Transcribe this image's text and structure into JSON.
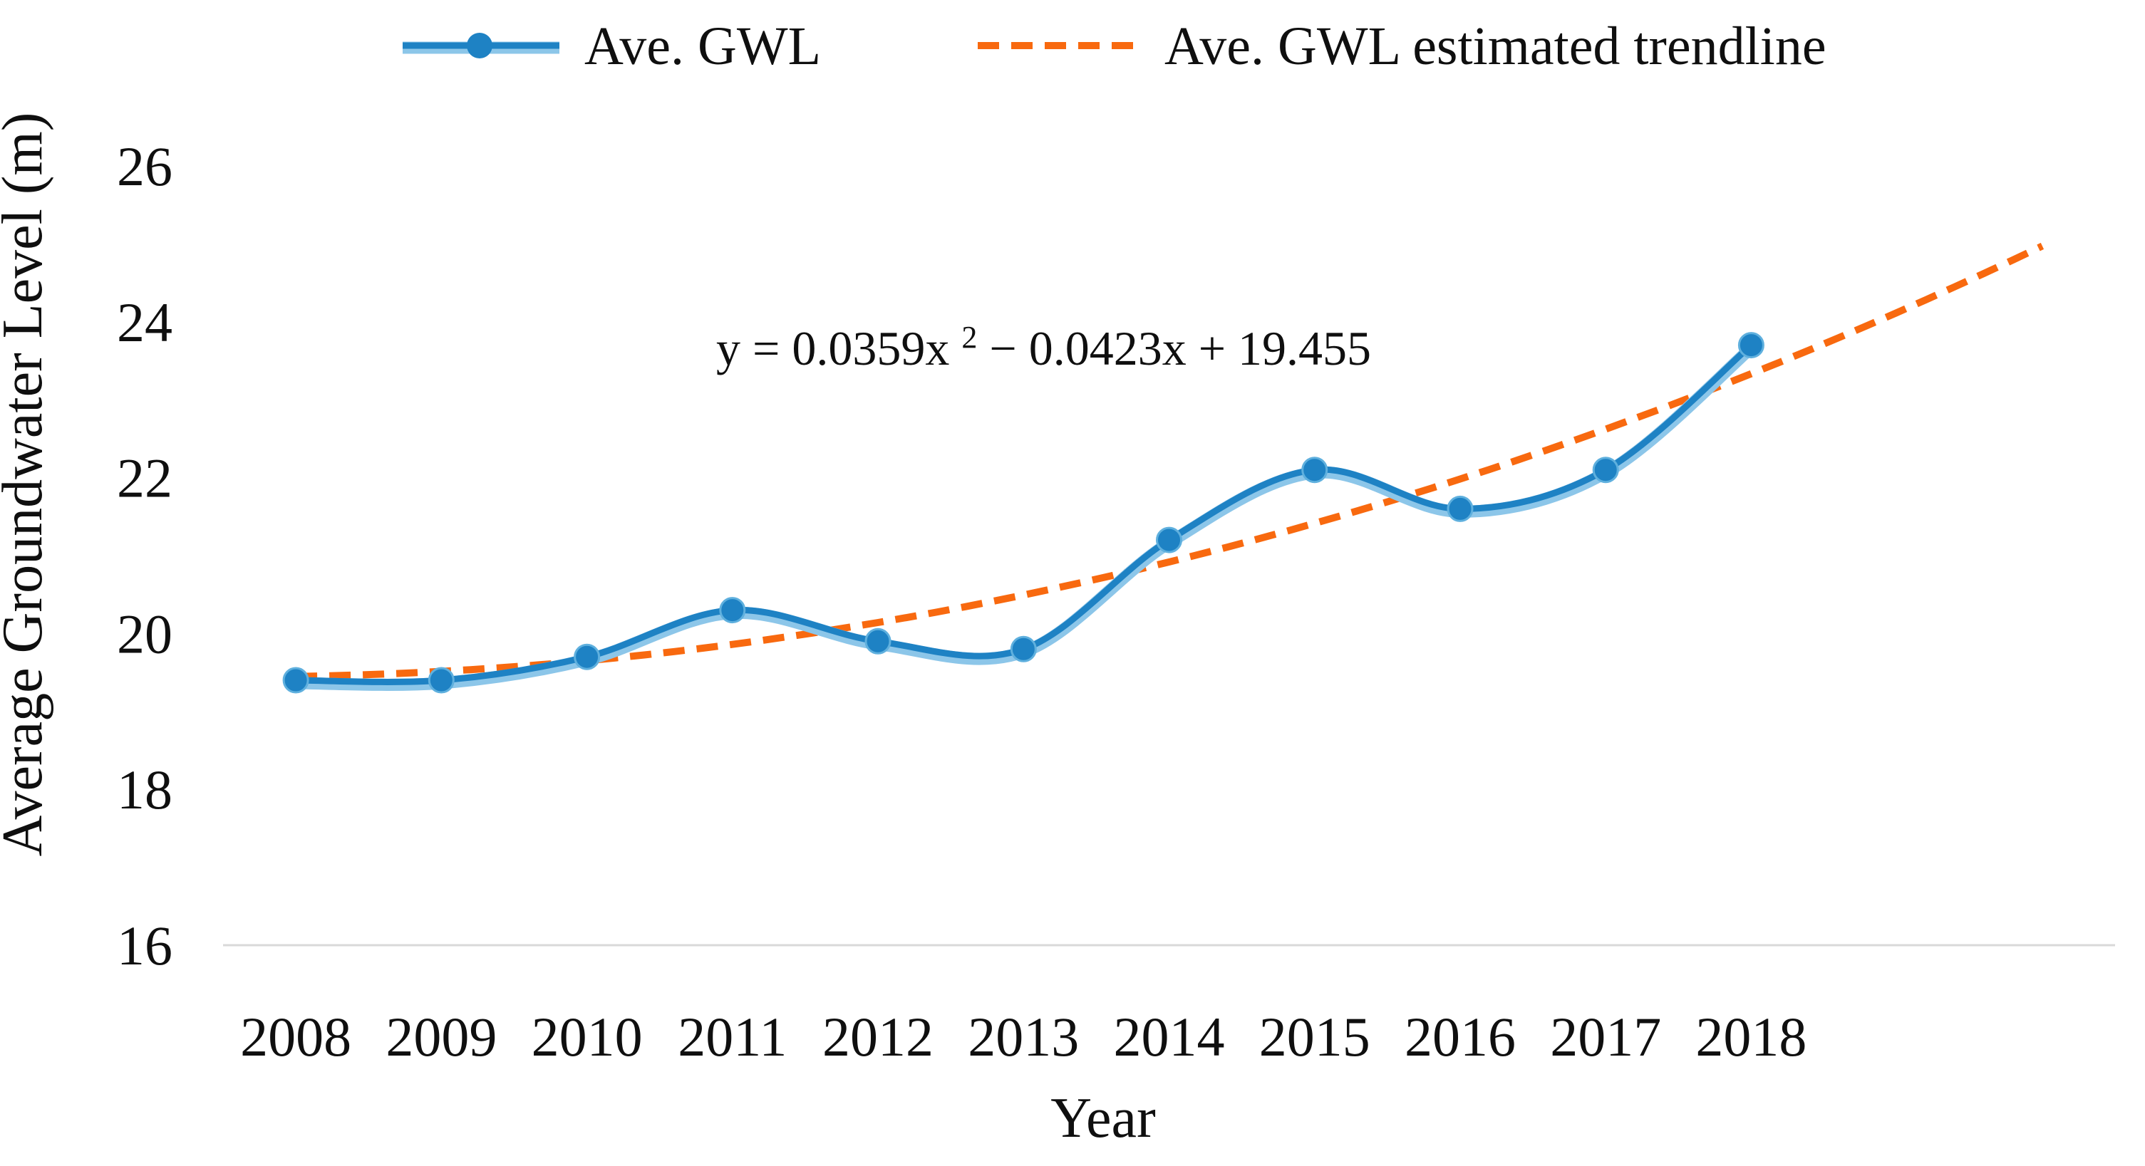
{
  "page": {
    "background": "#ffffff"
  },
  "legend": {
    "position": "top",
    "items": [
      {
        "label": "Ave. GWL",
        "swatch": "line-with-marker",
        "color": "#1e82c4"
      },
      {
        "label": "Ave. GWL estimated trendline",
        "swatch": "dashed-line",
        "color": "#f8690f"
      }
    ]
  },
  "chart_data": {
    "type": "line",
    "title": "",
    "xlabel": "Year",
    "ylabel": "Average Groundwater Level (m)",
    "categories": [
      "2008",
      "2009",
      "2010",
      "2011",
      "2012",
      "2013",
      "2014",
      "2015",
      "2016",
      "2017",
      "2018"
    ],
    "series": [
      {
        "name": "Ave. GWL",
        "values": [
          19.4,
          19.4,
          19.7,
          20.3,
          19.9,
          19.8,
          21.2,
          22.1,
          21.6,
          22.1,
          23.7
        ],
        "color": "#1e82c4",
        "halo_color": "#8cc6e9",
        "marker": "circle",
        "smooth": true
      }
    ],
    "trendline": {
      "name": "Ave. GWL estimated trendline",
      "color": "#f8690f",
      "style": "dashed",
      "equation_text": "y = 0.0359x² − 0.0423x + 19.455",
      "equation_parts": {
        "prefix": "y = 0.0359x",
        "superscript": "2",
        "suffix": " − 0.0423x + 19.455"
      },
      "coefficients": {
        "a": 0.0359,
        "b": -0.0423,
        "c": 19.455
      },
      "x_start": 1,
      "x_end": 13,
      "forecast_periods": 2
    },
    "ylim": [
      16,
      26
    ],
    "ytick_step": 2,
    "grid": false,
    "legend_position": "top",
    "axis_line_color": "#d9d9d9",
    "text_color": "#0f0f0f"
  }
}
